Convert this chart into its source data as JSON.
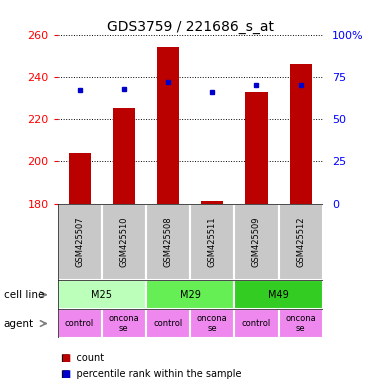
{
  "title": "GDS3759 / 221686_s_at",
  "samples": [
    "GSM425507",
    "GSM425510",
    "GSM425508",
    "GSM425511",
    "GSM425509",
    "GSM425512"
  ],
  "counts": [
    204,
    225,
    254,
    181,
    233,
    246
  ],
  "percentile_ranks": [
    67,
    68,
    72,
    66,
    70,
    70
  ],
  "ymin": 180,
  "ymax": 260,
  "yticks_left": [
    180,
    200,
    220,
    240,
    260
  ],
  "yticks_right": [
    0,
    25,
    50,
    75,
    100
  ],
  "yright_min": 0,
  "yright_max": 100,
  "cell_lines": [
    [
      "M25",
      0,
      2
    ],
    [
      "M29",
      2,
      4
    ],
    [
      "M49",
      4,
      6
    ]
  ],
  "cell_line_colors": [
    "#ccffcc",
    "#66dd44",
    "#44cc22"
  ],
  "agents": [
    "control",
    "onconase",
    "control",
    "onconase",
    "control",
    "onconase"
  ],
  "agent_color": "#ee88ee",
  "sample_bg_color": "#c8c8c8",
  "bar_color": "#bb0000",
  "dot_color": "#0000cc",
  "bar_width": 0.5,
  "title_fontsize": 10,
  "tick_fontsize": 8,
  "sample_fontsize": 6,
  "row_label_fontsize": 7.5,
  "cell_fontsize": 7,
  "legend_fontsize": 7
}
